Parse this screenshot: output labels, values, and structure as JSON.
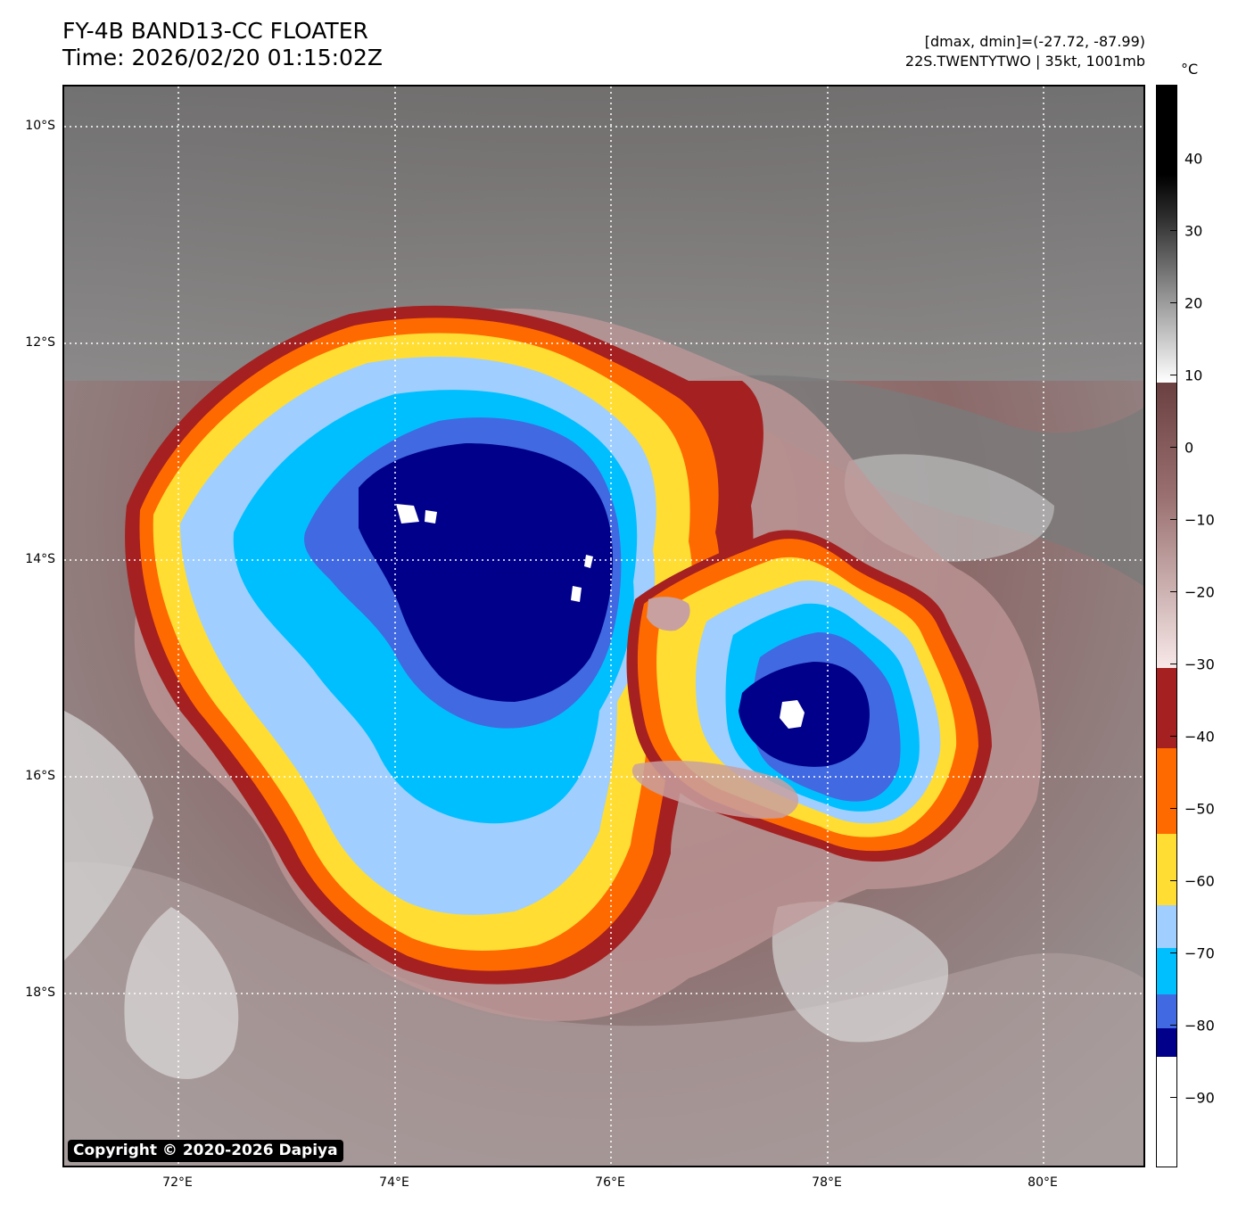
{
  "header": {
    "title_line1": "FY-4B BAND13-CC FLOATER",
    "title_line2": "Time: 2026/02/20 01:15:02Z",
    "meta_line1": "[dmax, dmin]=(-27.72, -87.99)",
    "meta_line2": "22S.TWENTYTWO | 35kt, 1001mb"
  },
  "map": {
    "copyright": "Copyright © 2020-2026 Dapiya",
    "lat_labels": [
      "10°S",
      "12°S",
      "14°S",
      "16°S",
      "18°S"
    ],
    "lon_labels": [
      "72°E",
      "74°E",
      "76°E",
      "78°E",
      "80°E"
    ],
    "background_color": "#8a8a8a"
  },
  "colorbar": {
    "unit": "°C",
    "ticks": [
      "40",
      "30",
      "20",
      "10",
      "0",
      "−10",
      "−20",
      "−30",
      "−40",
      "−50",
      "−60",
      "−70",
      "−80",
      "−90"
    ],
    "colors": {
      "white": "#ffffff",
      "navy": "#00008b",
      "royal_blue": "#4169e1",
      "deep_sky": "#00bfff",
      "light_blue": "#a0cfff",
      "gold": "#ffdd33",
      "orange": "#ff6a00",
      "brown_red": "#a52020",
      "rosy": "#c8a0a0",
      "brown": "#7a5050"
    }
  }
}
